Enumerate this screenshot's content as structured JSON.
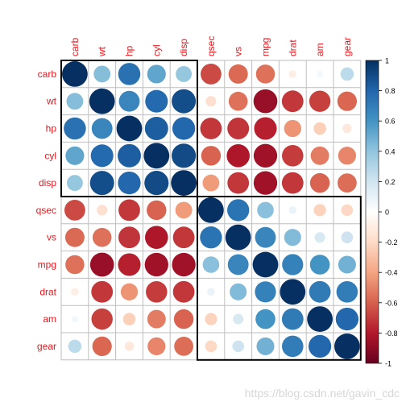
{
  "chart_data": {
    "type": "heatmap",
    "subtype": "correlation-circles",
    "variables": [
      "carb",
      "wt",
      "hp",
      "cyl",
      "disp",
      "qsec",
      "vs",
      "mpg",
      "drat",
      "am",
      "gear"
    ],
    "matrix": [
      [
        1.0,
        0.43,
        0.75,
        0.53,
        0.39,
        -0.66,
        -0.57,
        -0.55,
        -0.09,
        0.06,
        0.27
      ],
      [
        0.43,
        1.0,
        0.66,
        0.78,
        0.89,
        -0.17,
        -0.55,
        -0.87,
        -0.71,
        -0.69,
        -0.58
      ],
      [
        0.75,
        0.66,
        1.0,
        0.83,
        0.79,
        -0.71,
        -0.72,
        -0.78,
        -0.45,
        -0.24,
        -0.13
      ],
      [
        0.53,
        0.78,
        0.83,
        1.0,
        0.9,
        -0.59,
        -0.81,
        -0.85,
        -0.7,
        -0.52,
        -0.49
      ],
      [
        0.39,
        0.89,
        0.79,
        0.9,
        1.0,
        -0.43,
        -0.71,
        -0.85,
        -0.71,
        -0.59,
        -0.56
      ],
      [
        -0.66,
        -0.17,
        -0.71,
        -0.59,
        -0.43,
        1.0,
        0.74,
        0.42,
        0.09,
        -0.23,
        -0.21
      ],
      [
        -0.57,
        -0.55,
        -0.72,
        -0.81,
        -0.71,
        0.74,
        1.0,
        0.66,
        0.44,
        0.17,
        0.21
      ],
      [
        -0.55,
        -0.87,
        -0.78,
        -0.85,
        -0.85,
        0.42,
        0.66,
        1.0,
        0.68,
        0.6,
        0.48
      ],
      [
        -0.09,
        -0.71,
        -0.45,
        -0.7,
        -0.71,
        0.09,
        0.44,
        0.68,
        1.0,
        0.71,
        0.7
      ],
      [
        0.06,
        -0.69,
        -0.24,
        -0.52,
        -0.59,
        -0.23,
        0.17,
        0.6,
        0.71,
        1.0,
        0.79
      ],
      [
        0.27,
        -0.58,
        -0.13,
        -0.49,
        -0.56,
        -0.21,
        0.21,
        0.48,
        0.7,
        0.79,
        1.0
      ]
    ],
    "cluster_boxes": [
      {
        "start": 0,
        "end": 4
      },
      {
        "start": 5,
        "end": 10
      }
    ],
    "color_scale": {
      "range": [
        -1,
        1
      ],
      "ticks": [
        "-1",
        "-0.8",
        "-0.6",
        "-0.4",
        "-0.2",
        "0",
        "0.2",
        "0.4",
        "0.6",
        "0.8",
        "1"
      ],
      "stops": [
        "#67001F",
        "#B2182B",
        "#D6604D",
        "#F4A582",
        "#FDDBC7",
        "#FFFFFF",
        "#D1E5F0",
        "#92C5DE",
        "#4393C3",
        "#2166AC",
        "#053061"
      ]
    },
    "label_color": "#E8181E",
    "grid_color": "#BEBEBE",
    "box_color": "#000000"
  },
  "watermark": "https://blog.csdn.net/gavin_cdc"
}
